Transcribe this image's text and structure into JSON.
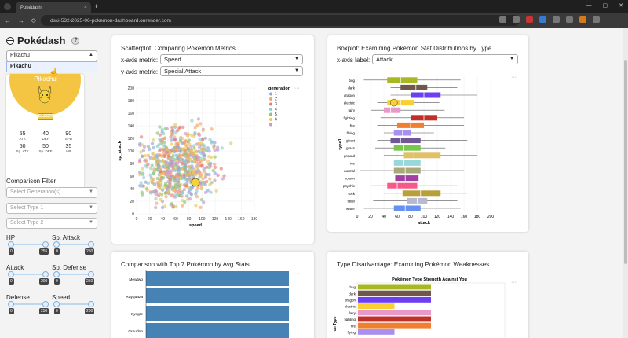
{
  "browser": {
    "tab_title": "Pokédash",
    "tab_close": "×",
    "new_tab": "+",
    "url": "dsci-532-2025-06-pokemon-dashboard.onrender.com",
    "nav": [
      "←",
      "→",
      "⟳"
    ],
    "window_controls": [
      "—",
      "▢",
      "✕"
    ]
  },
  "sidebar": {
    "brand": "Pokédash",
    "help": "?",
    "pokemon_select_value": "Pikachu",
    "dropdown_option": "Pikachu",
    "card": {
      "name": "Pikachu",
      "type": "ELECTR",
      "color": "#f4c542",
      "stats": [
        {
          "value": "55",
          "label": "ATK"
        },
        {
          "value": "40",
          "label": "DEF"
        },
        {
          "value": "90",
          "label": "SPD"
        },
        {
          "value": "50",
          "label": "Sp. ATK"
        },
        {
          "value": "50",
          "label": "Sp. DEF"
        },
        {
          "value": "35",
          "label": "HP"
        }
      ]
    },
    "comparison_filter_label": "Comparison Filter",
    "generation_placeholder": "Select Generation(s)",
    "type1_placeholder": "Select Type 1",
    "type2_placeholder": "Select Type 2",
    "sliders": [
      {
        "label": "HP",
        "min": "0",
        "max": "255"
      },
      {
        "label": "Sp. Attack",
        "min": "0",
        "max": "250"
      },
      {
        "label": "Attack",
        "min": "0",
        "max": "200"
      },
      {
        "label": "Sp. Defense",
        "min": "0",
        "max": "250"
      },
      {
        "label": "Defense",
        "min": "0",
        "max": "250"
      },
      {
        "label": "Speed",
        "min": "0",
        "max": "200"
      }
    ]
  },
  "scatter": {
    "title": "Scatterplot: Comparing Pokémon Metrics",
    "x_label": "x-axis metric:",
    "x_value": "Speed",
    "y_label": "y-axis metric:",
    "y_value": "Special Attack",
    "chart_data": {
      "type": "scatter",
      "xlabel": "speed",
      "ylabel": "sp_attack",
      "xlim": [
        0,
        180
      ],
      "ylim": [
        0,
        200
      ],
      "xticks": [
        "0",
        "20",
        "40",
        "60",
        "80",
        "100",
        "120",
        "140",
        "160",
        "180"
      ],
      "yticks": [
        "0",
        "20",
        "40",
        "60",
        "80",
        "100",
        "120",
        "140",
        "160",
        "180",
        "200"
      ],
      "legend_title": "generation",
      "legend": [
        "1",
        "2",
        "3",
        "4",
        "5",
        "6",
        "7"
      ],
      "colors": [
        "#8fa8d8",
        "#f2a766",
        "#e97b7b",
        "#8fcfc8",
        "#8bc577",
        "#e8c95a",
        "#c59ac7"
      ],
      "highlight": {
        "x": 90,
        "y": 50
      }
    }
  },
  "boxplot": {
    "title": "Boxplot: Examining Pokémon Stat Distributions by Type",
    "x_label": "x-axis label:",
    "x_value": "Attack",
    "chart_data": {
      "type": "box",
      "xlabel": "attack",
      "ylabel": "type1",
      "xlim": [
        0,
        200
      ],
      "xticks": [
        "0",
        "20",
        "40",
        "60",
        "80",
        "100",
        "120",
        "140",
        "160",
        "180",
        "200"
      ],
      "categories": [
        "bug",
        "dark",
        "dragon",
        "electric",
        "fairy",
        "fighting",
        "fire",
        "flying",
        "ghost",
        "grass",
        "ground",
        "ice",
        "normal",
        "poison",
        "psychic",
        "rock",
        "steel",
        "water"
      ],
      "boxes": [
        {
          "min": 10,
          "q1": 45,
          "med": 65,
          "q3": 90,
          "max": 155,
          "color": "#a8b820"
        },
        {
          "min": 50,
          "q1": 65,
          "med": 88,
          "q3": 105,
          "max": 150,
          "color": "#705848"
        },
        {
          "min": 50,
          "q1": 80,
          "med": 100,
          "q3": 125,
          "max": 180,
          "color": "#6c3ff0"
        },
        {
          "min": 30,
          "q1": 45,
          "med": 65,
          "q3": 85,
          "max": 123,
          "color": "#f8d030"
        },
        {
          "min": 20,
          "q1": 40,
          "med": 50,
          "q3": 65,
          "max": 131,
          "color": "#e898c8"
        },
        {
          "min": 35,
          "q1": 80,
          "med": 100,
          "q3": 120,
          "max": 160,
          "color": "#c03028"
        },
        {
          "min": 30,
          "q1": 60,
          "med": 80,
          "q3": 100,
          "max": 160,
          "color": "#f08030"
        },
        {
          "min": 40,
          "q1": 55,
          "med": 68,
          "q3": 80,
          "max": 115,
          "color": "#a890f0"
        },
        {
          "min": 30,
          "q1": 50,
          "med": 65,
          "q3": 95,
          "max": 165,
          "color": "#705898"
        },
        {
          "min": 27,
          "q1": 55,
          "med": 70,
          "q3": 95,
          "max": 132,
          "color": "#78c850"
        },
        {
          "min": 40,
          "q1": 70,
          "med": 85,
          "q3": 125,
          "max": 180,
          "color": "#e0c068"
        },
        {
          "min": 30,
          "q1": 55,
          "med": 70,
          "q3": 95,
          "max": 130,
          "color": "#98d8d8"
        },
        {
          "min": 5,
          "q1": 55,
          "med": 72,
          "q3": 95,
          "max": 160,
          "color": "#a8a878"
        },
        {
          "min": 43,
          "q1": 57,
          "med": 72,
          "q3": 92,
          "max": 139,
          "color": "#a040a0"
        },
        {
          "min": 20,
          "q1": 45,
          "med": 60,
          "q3": 90,
          "max": 150,
          "color": "#f85888"
        },
        {
          "min": 40,
          "q1": 68,
          "med": 95,
          "q3": 125,
          "max": 165,
          "color": "#b8a038"
        },
        {
          "min": 24,
          "q1": 75,
          "med": 90,
          "q3": 105,
          "max": 150,
          "color": "#b8b8d0"
        },
        {
          "min": 10,
          "q1": 55,
          "med": 72,
          "q3": 95,
          "max": 155,
          "color": "#6890f0"
        }
      ]
    }
  },
  "top7": {
    "title": "Comparison with Top 7 Pokémon by Avg Stats",
    "chart_data": {
      "type": "bar",
      "categories": [
        "Mewtwo",
        "Rayquaza",
        "Kyogre",
        "Groudon"
      ],
      "color": "#4682b4"
    }
  },
  "weakness": {
    "title": "Type Disadvantage: Examining Pokémon Weaknesses",
    "chart_data": {
      "type": "bar",
      "title": "Pokémon Type Strength Against You",
      "categories": [
        "bug",
        "dark",
        "dragon",
        "electric",
        "fairy",
        "fighting",
        "fire",
        "flying"
      ],
      "colors": [
        "#a8b820",
        "#705848",
        "#6c3ff0",
        "#f8d030",
        "#e898c8",
        "#c03028",
        "#f08030",
        "#a890f0"
      ],
      "values": [
        1,
        1,
        1,
        0.5,
        1,
        1,
        1,
        0.5
      ],
      "ylabel_partial": "on Type"
    }
  }
}
